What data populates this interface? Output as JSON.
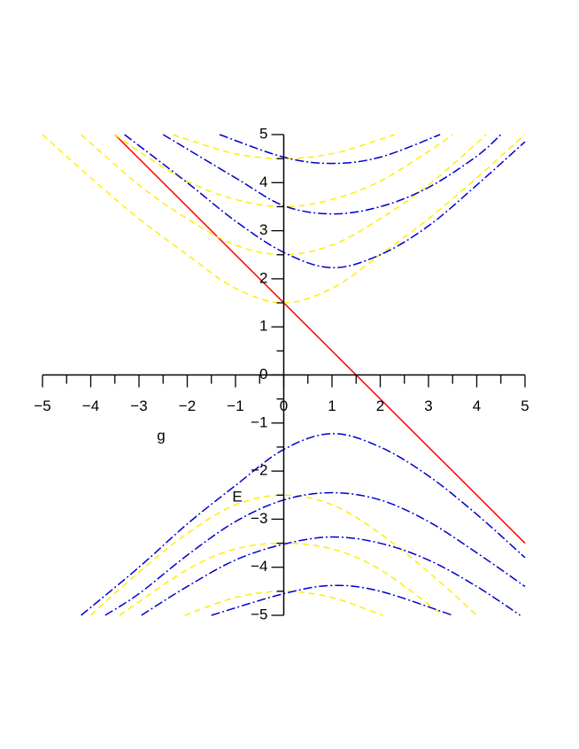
{
  "chart_data": {
    "type": "line",
    "xlabel": "g",
    "ylabel": "E",
    "xlim": [
      -5,
      5
    ],
    "ylim": [
      -5,
      5
    ],
    "xticks": [
      {
        "value": -5,
        "label": "−5"
      },
      {
        "value": -4,
        "label": "−4"
      },
      {
        "value": -3,
        "label": "−3"
      },
      {
        "value": -2,
        "label": "−2"
      },
      {
        "value": -1,
        "label": "−1"
      },
      0,
      1,
      2,
      3,
      4,
      5
    ],
    "yticks": [
      {
        "value": -5,
        "label": "−5"
      },
      {
        "value": -4,
        "label": "−4"
      },
      {
        "value": -3,
        "label": "−3"
      },
      {
        "value": -2,
        "label": "−2"
      },
      {
        "value": -1,
        "label": "−1"
      },
      0,
      1,
      2,
      3,
      4,
      5
    ],
    "xminorticks": [
      -4.5,
      -3.5,
      -2.5,
      -1.5,
      -0.5,
      0.5,
      1.5,
      2.5,
      3.5,
      4.5
    ],
    "yminorticks": [
      -4.5,
      -3.5,
      -2.5,
      -1.5,
      -0.5,
      0.5,
      1.5,
      2.5,
      3.5,
      4.5
    ],
    "series": [
      {
        "color": "#ff0000",
        "style": "solid",
        "x": [
          -3.5,
          5
        ],
        "values": [
          5,
          -3.5
        ]
      },
      {
        "color": "#ffee00",
        "style": "dash",
        "x": [
          -5,
          -4,
          -3,
          -2,
          -1,
          0,
          1,
          2,
          3,
          4,
          5
        ],
        "values": [
          5,
          4.1,
          3.25,
          2.5,
          1.8,
          1.5,
          1.8,
          2.5,
          3.25,
          4.1,
          5
        ]
      },
      {
        "color": "#ffee00",
        "style": "dash",
        "x": [
          -4.2,
          -3,
          -2,
          -1,
          0,
          1,
          2,
          3,
          4.2
        ],
        "values": [
          5,
          3.95,
          3.25,
          2.7,
          2.5,
          2.7,
          3.25,
          3.95,
          5
        ]
      },
      {
        "color": "#ffee00",
        "style": "dash",
        "x": [
          -3.5,
          -3,
          -2,
          -1,
          0,
          1,
          2,
          3,
          3.5
        ],
        "values": [
          5,
          4.65,
          4.03,
          3.65,
          3.5,
          3.65,
          4.03,
          4.65,
          5
        ]
      },
      {
        "color": "#ffee00",
        "style": "dash",
        "x": [
          -2.3,
          -2,
          -1,
          0,
          1,
          2,
          2.3
        ],
        "values": [
          5,
          4.9,
          4.6,
          4.5,
          4.6,
          4.9,
          5
        ]
      },
      {
        "color": "#ffee00",
        "style": "dash",
        "x": [
          -4,
          -3,
          -2,
          -1,
          0,
          1,
          2,
          3,
          4
        ],
        "values": [
          -5,
          -4.1,
          -3.3,
          -2.7,
          -2.5,
          -2.7,
          -3.3,
          -4.1,
          -5
        ]
      },
      {
        "color": "#ffee00",
        "style": "dash",
        "x": [
          -3.4,
          -2,
          -1,
          0,
          1,
          2,
          3.3
        ],
        "values": [
          -5,
          -4.05,
          -3.62,
          -3.5,
          -3.62,
          -4.05,
          -5
        ]
      },
      {
        "color": "#ffee00",
        "style": "dash",
        "x": [
          -2.05,
          -1,
          0,
          1,
          2.05
        ],
        "values": [
          -5,
          -4.63,
          -4.5,
          -4.63,
          -5
        ]
      },
      {
        "color": "#0000cc",
        "style": "dashdot",
        "x": [
          -3.3,
          -2,
          -1,
          0,
          1,
          2,
          3,
          4,
          5
        ],
        "values": [
          5,
          4.0,
          3.2,
          2.55,
          2.23,
          2.5,
          3.1,
          3.95,
          4.85
        ]
      },
      {
        "color": "#0000cc",
        "style": "dashdot",
        "x": [
          -2.5,
          -1,
          0,
          1,
          2,
          3,
          4,
          4.5
        ],
        "values": [
          5,
          4.1,
          3.52,
          3.35,
          3.5,
          3.9,
          4.55,
          5
        ]
      },
      {
        "color": "#0000cc",
        "style": "dashdot",
        "x": [
          -1.33,
          0,
          1,
          2,
          3.24
        ],
        "values": [
          5,
          4.53,
          4.4,
          4.53,
          5
        ]
      },
      {
        "color": "#0000cc",
        "style": "dashdot",
        "x": [
          -4.2,
          -3,
          -2,
          -1,
          0,
          1,
          2,
          3,
          4,
          5
        ],
        "values": [
          -5,
          -4.0,
          -3.1,
          -2.3,
          -1.55,
          -1.22,
          -1.5,
          -2.1,
          -2.9,
          -3.8
        ]
      },
      {
        "color": "#0000cc",
        "style": "dashdot",
        "x": [
          -3.7,
          -3,
          -2,
          -1,
          0,
          1,
          2,
          3,
          4,
          5
        ],
        "values": [
          -5,
          -4.55,
          -3.75,
          -3.05,
          -2.6,
          -2.45,
          -2.6,
          -3.05,
          -3.7,
          -4.4
        ]
      },
      {
        "color": "#0000cc",
        "style": "dashdot",
        "x": [
          -2.95,
          -2,
          -1,
          0,
          1,
          2,
          3,
          4,
          4.9
        ],
        "values": [
          -5,
          -4.4,
          -3.85,
          -3.52,
          -3.37,
          -3.5,
          -3.85,
          -4.4,
          -5
        ]
      },
      {
        "color": "#0000cc",
        "style": "dashdot",
        "x": [
          -1.5,
          0,
          1,
          2,
          3.5
        ],
        "values": [
          -5,
          -4.55,
          -4.38,
          -4.5,
          -5
        ]
      }
    ]
  }
}
